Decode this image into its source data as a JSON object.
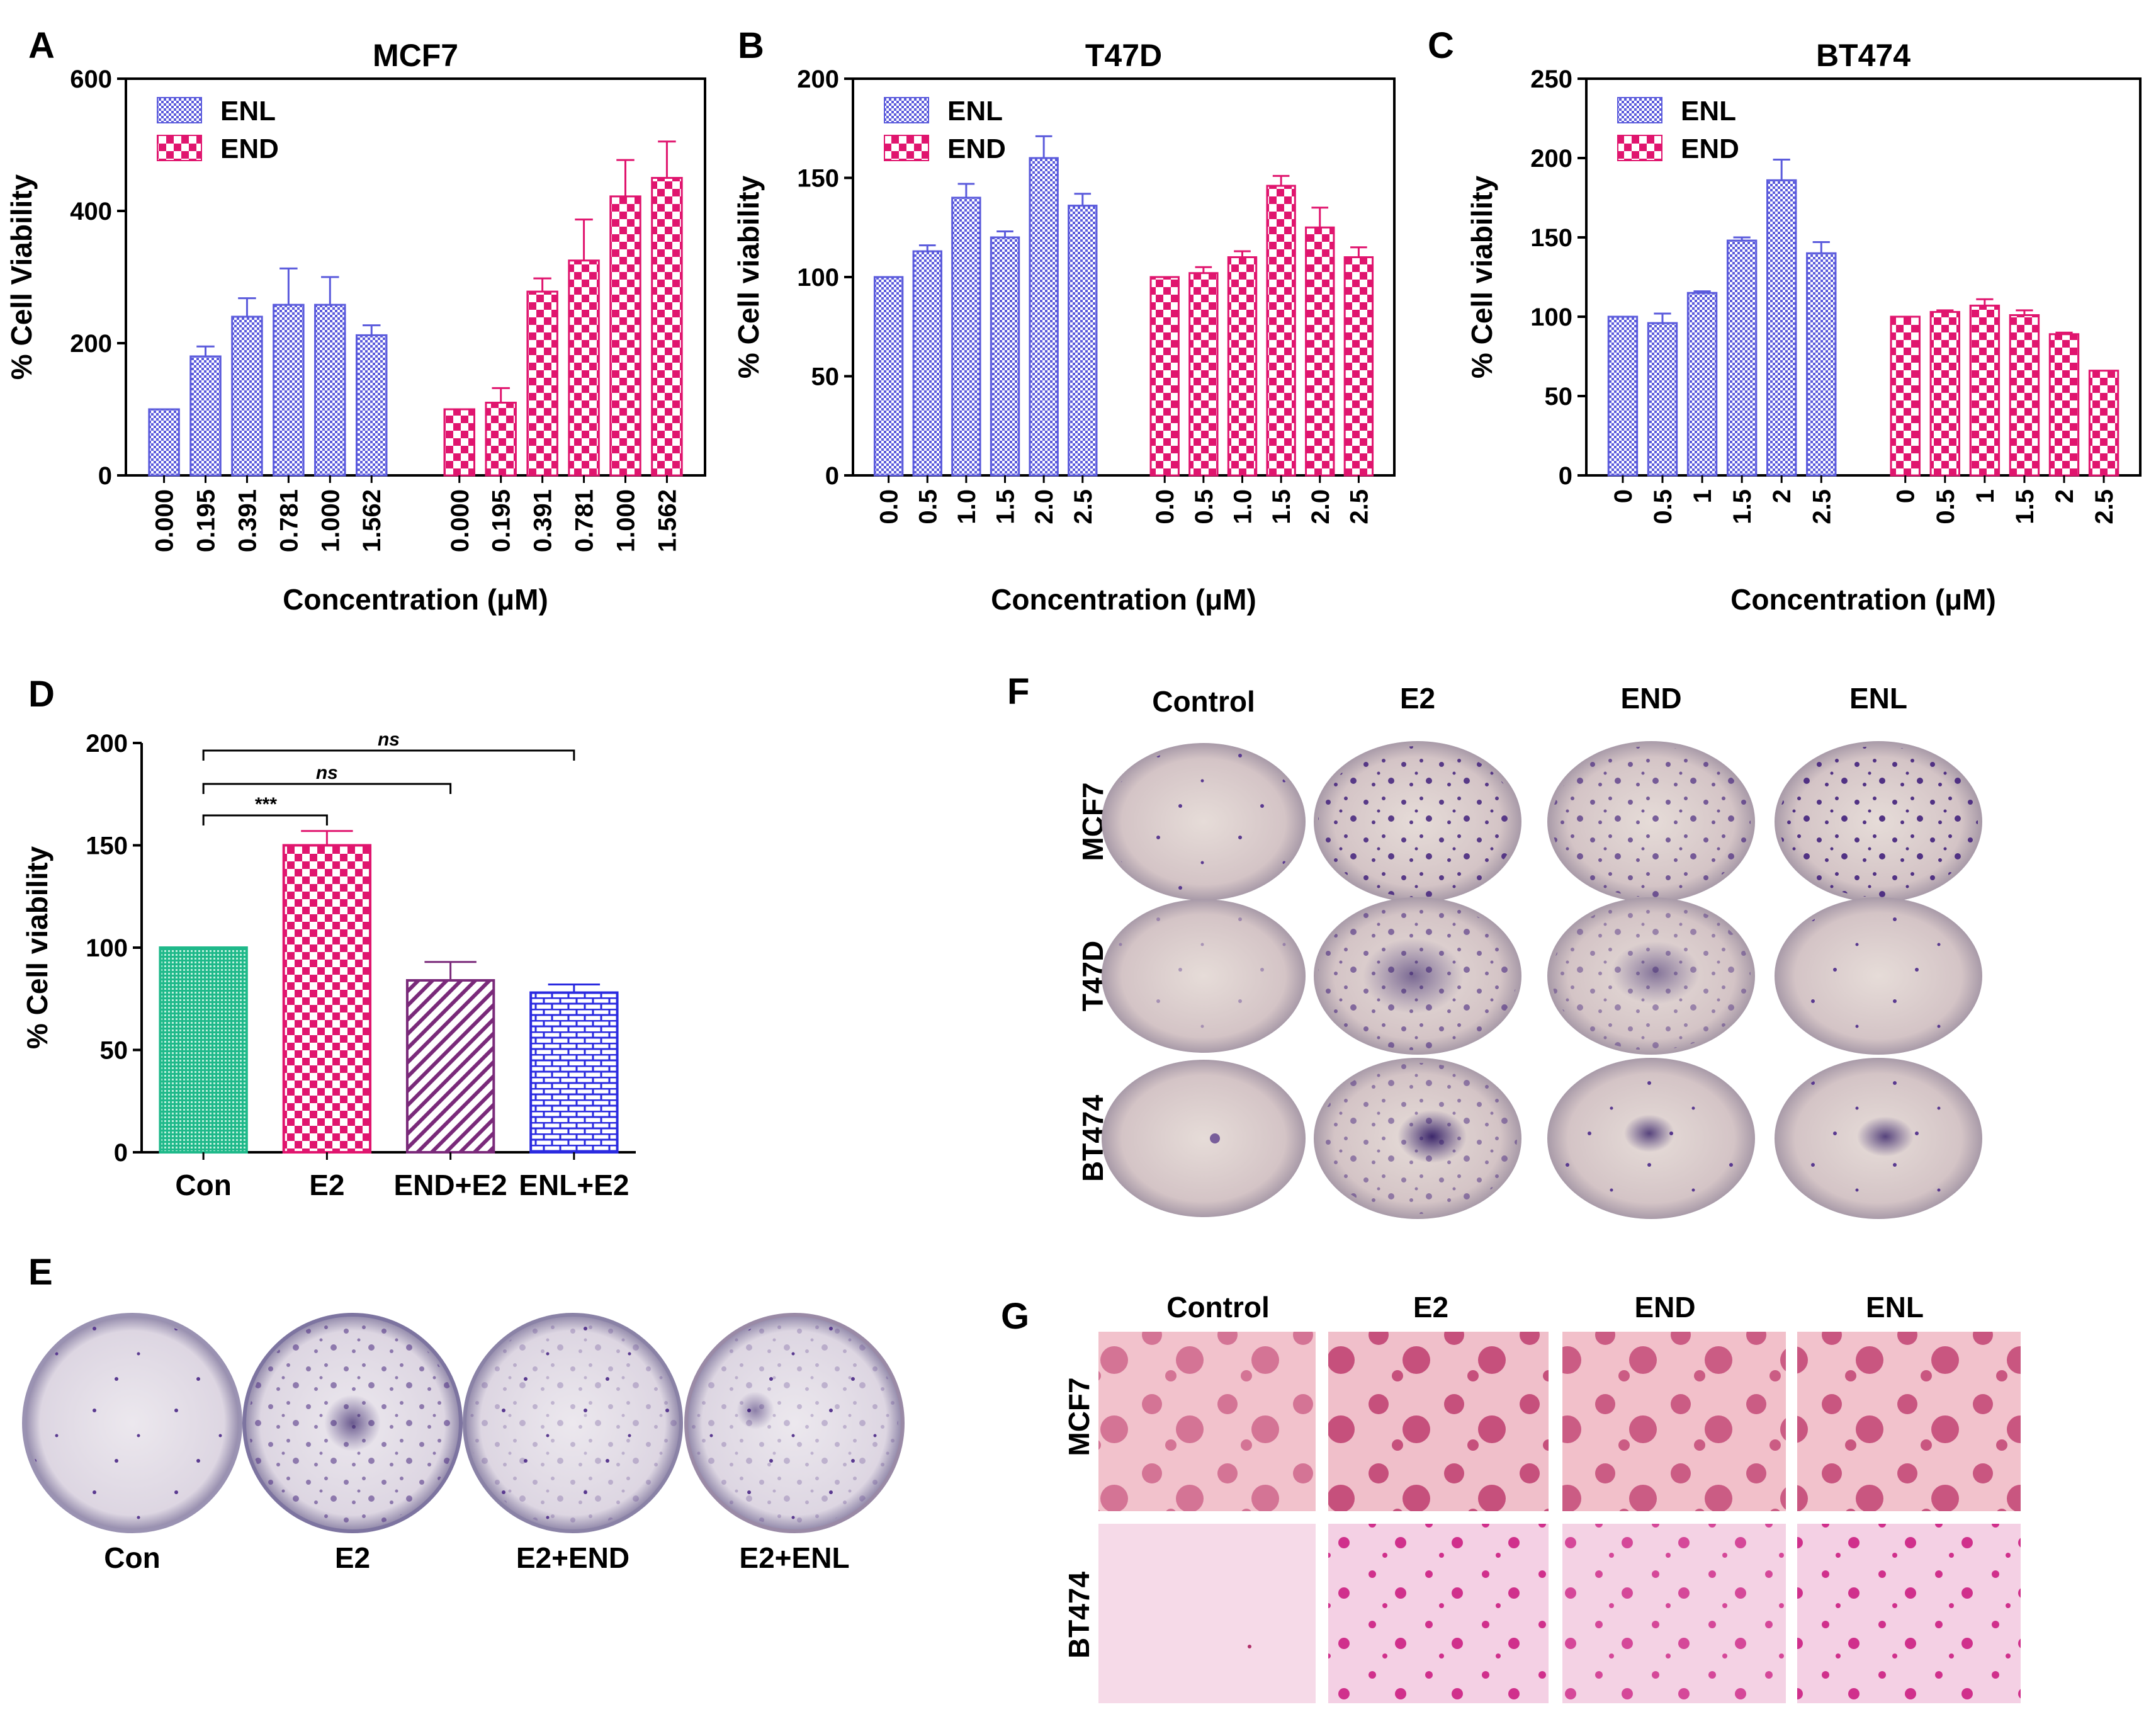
{
  "colors": {
    "enl": "#5b5bdc",
    "end": "#e0156e",
    "con": "#1fb98a",
    "e2": "#e0156e",
    "end_e2": "#7a2a7a",
    "enl_e2": "#2a2ae0"
  },
  "panels": {
    "A": "A",
    "B": "B",
    "C": "C",
    "D": "D",
    "E": "E",
    "F": "F",
    "G": "G"
  },
  "chart_data": [
    {
      "id": "A",
      "type": "bar",
      "title": "MCF7",
      "xlabel": "Concentration (μM)",
      "ylabel": "% Cell Viability",
      "ylim": [
        0,
        600
      ],
      "yticks": [
        0,
        200,
        400,
        600
      ],
      "legend_position": "top-left",
      "categories": [
        "0.000",
        "0.195",
        "0.391",
        "0.781",
        "1.000",
        "1.562"
      ],
      "series": [
        {
          "name": "ENL",
          "values": [
            100,
            180,
            240,
            258,
            258,
            212
          ],
          "errors": [
            0,
            15,
            28,
            55,
            42,
            15
          ]
        },
        {
          "name": "END",
          "values": [
            100,
            110,
            278,
            325,
            422,
            450
          ],
          "errors": [
            0,
            22,
            20,
            62,
            55,
            55
          ]
        }
      ]
    },
    {
      "id": "B",
      "type": "bar",
      "title": "T47D",
      "xlabel": "Concentration (μM)",
      "ylabel": "% Cell viability",
      "ylim": [
        0,
        200
      ],
      "yticks": [
        0,
        50,
        100,
        150,
        200
      ],
      "legend_position": "top-left",
      "categories": [
        "0.0",
        "0.5",
        "1.0",
        "1.5",
        "2.0",
        "2.5"
      ],
      "series": [
        {
          "name": "ENL",
          "values": [
            100,
            113,
            140,
            120,
            160,
            136
          ],
          "errors": [
            0,
            3,
            7,
            3,
            11,
            6
          ]
        },
        {
          "name": "END",
          "values": [
            100,
            102,
            110,
            146,
            125,
            110
          ],
          "errors": [
            0,
            3,
            3,
            5,
            10,
            5
          ]
        }
      ]
    },
    {
      "id": "C",
      "type": "bar",
      "title": "BT474",
      "xlabel": "Concentration (μM)",
      "ylabel": "% Cell viability",
      "ylim": [
        0,
        250
      ],
      "yticks": [
        0,
        50,
        100,
        150,
        200,
        250
      ],
      "legend_position": "top-left",
      "categories": [
        "0",
        "0.5",
        "1",
        "1.5",
        "2",
        "2.5"
      ],
      "series": [
        {
          "name": "ENL",
          "values": [
            100,
            96,
            115,
            148,
            186,
            140
          ],
          "errors": [
            0,
            6,
            1,
            2,
            13,
            7
          ]
        },
        {
          "name": "END",
          "values": [
            100,
            103,
            107,
            101,
            89,
            66
          ],
          "errors": [
            0,
            1,
            4,
            3,
            1,
            0
          ]
        }
      ]
    },
    {
      "id": "D",
      "type": "bar",
      "title": "",
      "xlabel": "",
      "ylabel": "% Cell viability",
      "ylim": [
        0,
        200
      ],
      "yticks": [
        0,
        50,
        100,
        150,
        200
      ],
      "categories": [
        "Con",
        "E2",
        "END+E2",
        "ENL+E2"
      ],
      "values": [
        100,
        150,
        84,
        78
      ],
      "errors": [
        0,
        7,
        9,
        4
      ],
      "significance": [
        {
          "from": "Con",
          "to": "E2",
          "label": "***"
        },
        {
          "from": "Con",
          "to": "END+E2",
          "label": "ns"
        },
        {
          "from": "Con",
          "to": "ENL+E2",
          "label": "ns"
        }
      ]
    }
  ],
  "panel_e": {
    "labels": [
      "Con",
      "E2",
      "E2+END",
      "E2+ENL"
    ]
  },
  "panel_f": {
    "columns": [
      "Control",
      "E2",
      "END",
      "ENL"
    ],
    "rows": [
      "MCF7",
      "T47D",
      "BT474"
    ]
  },
  "panel_g": {
    "columns": [
      "Control",
      "E2",
      "END",
      "ENL"
    ],
    "rows": [
      "MCF7",
      "BT474"
    ]
  }
}
